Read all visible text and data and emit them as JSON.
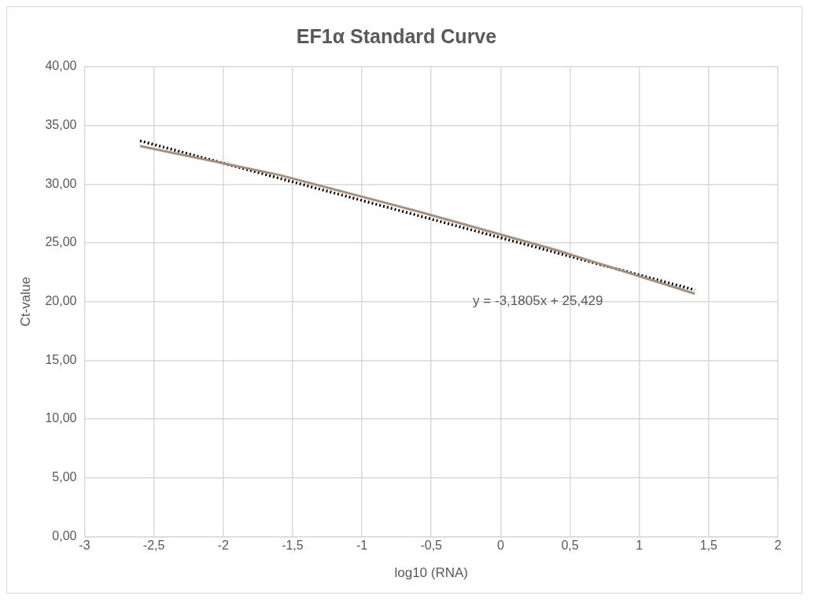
{
  "chart_data": {
    "type": "line",
    "title": "EF1α Standard Curve",
    "xlabel": "log10 (RNA)",
    "ylabel": "Ct-value",
    "series": [
      {
        "color": "#a68f7b",
        "x": [
          -2.6,
          -1.6,
          -0.6,
          0.4,
          1.4
        ],
        "values": [
          33.25,
          30.8,
          27.7,
          24.4,
          20.68
        ],
        "line_style": "solid"
      },
      {
        "type": "line",
        "color": "#000000",
        "x": [
          -2.6,
          1.4
        ],
        "values": [
          33.7,
          21.0
        ],
        "line_style": "dotted"
      }
    ],
    "annotations": [
      "y = -3,1805x + 25,429"
    ],
    "xlim": [
      -3,
      2
    ],
    "xticks": [
      {
        "value": -3,
        "label": "-3"
      },
      {
        "value": -2.5,
        "label": "-2,5"
      },
      {
        "value": -2,
        "label": "-2"
      },
      {
        "value": -1.5,
        "label": "-1,5"
      },
      {
        "value": -1,
        "label": "-1"
      },
      {
        "value": -0.5,
        "label": "-0,5"
      },
      {
        "value": 0,
        "label": "0"
      },
      {
        "value": 0.5,
        "label": "0,5"
      },
      {
        "value": 1,
        "label": "1"
      },
      {
        "value": 1.5,
        "label": "1,5"
      },
      {
        "value": 2,
        "label": "2"
      }
    ],
    "ylim": [
      0,
      40
    ],
    "yticks": [
      {
        "value": 0,
        "label": "0,00"
      },
      {
        "value": 5,
        "label": "5,00"
      },
      {
        "value": 10,
        "label": "10,00"
      },
      {
        "value": 15,
        "label": "15,00"
      },
      {
        "value": 20,
        "label": "20,00"
      },
      {
        "value": 25,
        "label": "25,00"
      },
      {
        "value": 30,
        "label": "30,00"
      },
      {
        "value": 35,
        "label": "35,00"
      },
      {
        "value": 40,
        "label": "40,00"
      }
    ],
    "grid": true,
    "legend": false,
    "marker": "none"
  }
}
